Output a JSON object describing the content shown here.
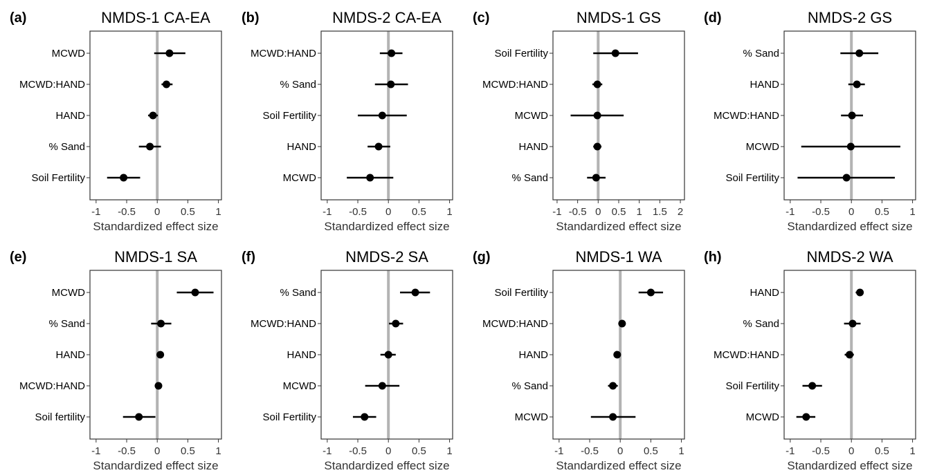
{
  "figure": {
    "xlabel": "Standardized effect size",
    "colors": {
      "zero_line": "#b3b3b3",
      "marker": "#000000",
      "frame": "#333333",
      "text": "#333333"
    }
  },
  "chart_data": [
    {
      "type": "forest",
      "letter": "(a)",
      "title": "NMDS-1 CA-EA",
      "xlabel": "Standardized effect size",
      "xlim": [
        -1.1,
        1.05
      ],
      "xticks": [
        -1,
        -0.5,
        0,
        0.5,
        1
      ],
      "xtick_labels": [
        "-1",
        "-0.5",
        "0",
        "0.5",
        "1"
      ],
      "terms": [
        "MCWD",
        "MCWD:HAND",
        "HAND",
        "% Sand",
        "Soil Fertility"
      ],
      "estimate": [
        0.2,
        0.15,
        -0.07,
        -0.12,
        -0.55
      ],
      "lower": [
        -0.05,
        0.07,
        -0.15,
        -0.3,
        -0.82
      ],
      "upper": [
        0.46,
        0.25,
        0.01,
        0.06,
        -0.28
      ]
    },
    {
      "type": "forest",
      "letter": "(b)",
      "title": "NMDS-2 CA-EA",
      "xlabel": "Standardized effect size",
      "xlim": [
        -1.1,
        1.05
      ],
      "xticks": [
        -1,
        -0.5,
        0,
        0.5,
        1
      ],
      "xtick_labels": [
        "-1",
        "-0.5",
        "0",
        "0.5",
        "1"
      ],
      "terms": [
        "MCWD:HAND",
        "% Sand",
        "Soil Fertility",
        "HAND",
        "MCWD"
      ],
      "estimate": [
        0.05,
        0.04,
        -0.1,
        -0.16,
        -0.3
      ],
      "lower": [
        -0.14,
        -0.22,
        -0.5,
        -0.34,
        -0.68
      ],
      "upper": [
        0.23,
        0.32,
        0.3,
        0.03,
        0.08
      ]
    },
    {
      "type": "forest",
      "letter": "(c)",
      "title": "NMDS-1 GS",
      "xlabel": "Standardized effect size",
      "xlim": [
        -1.1,
        2.1
      ],
      "xticks": [
        -1,
        -0.5,
        0,
        0.5,
        1,
        1.5,
        2
      ],
      "xtick_labels": [
        "-1",
        "-0.5",
        "0",
        "0.5",
        "1",
        "1.5",
        "2"
      ],
      "terms": [
        "Soil Fertility",
        "MCWD:HAND",
        "MCWD",
        "HAND",
        "% Sand"
      ],
      "estimate": [
        0.42,
        -0.02,
        -0.02,
        -0.02,
        -0.05
      ],
      "lower": [
        -0.12,
        -0.14,
        -0.67,
        -0.12,
        -0.27
      ],
      "upper": [
        0.97,
        0.1,
        0.62,
        0.08,
        0.18
      ]
    },
    {
      "type": "forest",
      "letter": "(d)",
      "title": "NMDS-2 GS",
      "xlabel": "Standardized effect size",
      "xlim": [
        -1.1,
        1.05
      ],
      "xticks": [
        -1,
        -0.5,
        0,
        0.5,
        1
      ],
      "xtick_labels": [
        "-1",
        "-0.5",
        "0",
        "0.5",
        "1"
      ],
      "terms": [
        "% Sand",
        "HAND",
        "MCWD:HAND",
        "MCWD",
        "Soil Fertility"
      ],
      "estimate": [
        0.13,
        0.09,
        0.01,
        -0.01,
        -0.08
      ],
      "lower": [
        -0.18,
        -0.05,
        -0.17,
        -0.82,
        -0.88
      ],
      "upper": [
        0.44,
        0.22,
        0.19,
        0.8,
        0.71
      ]
    },
    {
      "type": "forest",
      "letter": "(e)",
      "title": "NMDS-1 SA",
      "xlabel": "Standardized effect size",
      "xlim": [
        -1.1,
        1.05
      ],
      "xticks": [
        -1,
        -0.5,
        0,
        0.5,
        1
      ],
      "xtick_labels": [
        "-1",
        "-0.5",
        "0",
        "0.5",
        "1"
      ],
      "terms": [
        "MCWD",
        "% Sand",
        "HAND",
        "MCWD:HAND",
        "Soil fertility"
      ],
      "estimate": [
        0.62,
        0.06,
        0.05,
        0.02,
        -0.3
      ],
      "lower": [
        0.32,
        -0.1,
        0.01,
        -0.02,
        -0.56
      ],
      "upper": [
        0.92,
        0.23,
        0.1,
        0.07,
        -0.03
      ]
    },
    {
      "type": "forest",
      "letter": "(f)",
      "title": "NMDS-2 SA",
      "xlabel": "Standardized effect size",
      "xlim": [
        -1.1,
        1.05
      ],
      "xticks": [
        -1,
        -0.5,
        0,
        0.5,
        1
      ],
      "xtick_labels": [
        "-1",
        "-0.5",
        "0",
        "0.5",
        "1"
      ],
      "terms": [
        "% Sand",
        "MCWD:HAND",
        "HAND",
        "MCWD",
        "Soil Fertility"
      ],
      "estimate": [
        0.44,
        0.12,
        0,
        -0.1,
        -0.39
      ],
      "lower": [
        0.19,
        0.01,
        -0.13,
        -0.38,
        -0.58
      ],
      "upper": [
        0.68,
        0.24,
        0.12,
        0.18,
        -0.2
      ]
    },
    {
      "type": "forest",
      "letter": "(g)",
      "title": "NMDS-1 WA",
      "xlabel": "Standardized effect size",
      "xlim": [
        -1.1,
        1.05
      ],
      "xticks": [
        -1,
        -0.5,
        0,
        0.5,
        1
      ],
      "xtick_labels": [
        "-1",
        "-0.5",
        "0",
        "0.5",
        "1"
      ],
      "terms": [
        "Soil Fertility",
        "MCWD:HAND",
        "HAND",
        "% Sand",
        "MCWD"
      ],
      "estimate": [
        0.5,
        0.03,
        -0.05,
        -0.12,
        -0.12
      ],
      "lower": [
        0.3,
        0.01,
        -0.09,
        -0.2,
        -0.48
      ],
      "upper": [
        0.7,
        0.05,
        -0.01,
        -0.04,
        0.25
      ]
    },
    {
      "type": "forest",
      "letter": "(h)",
      "title": "NMDS-2 WA",
      "xlabel": "Standardized effect size",
      "xlim": [
        -1.1,
        1.05
      ],
      "xticks": [
        -1,
        -0.5,
        0,
        0.5,
        1
      ],
      "xtick_labels": [
        "-1",
        "-0.5",
        "0",
        "0.5",
        "1"
      ],
      "terms": [
        "HAND",
        "% Sand",
        "MCWD:HAND",
        "Soil Fertility",
        "MCWD"
      ],
      "estimate": [
        0.14,
        0.02,
        -0.03,
        -0.64,
        -0.74
      ],
      "lower": [
        0.07,
        -0.12,
        -0.11,
        -0.8,
        -0.9
      ],
      "upper": [
        0.2,
        0.15,
        0.04,
        -0.48,
        -0.59
      ]
    }
  ]
}
